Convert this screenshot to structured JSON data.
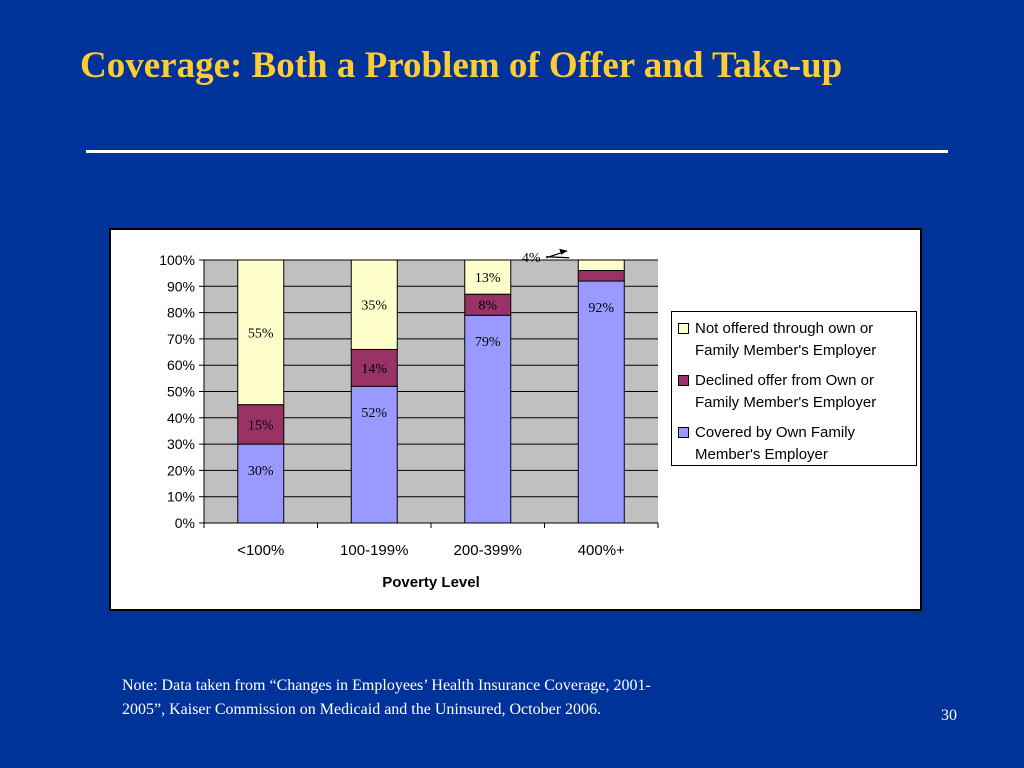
{
  "slide": {
    "title": "Coverage: Both a Problem of Offer and Take-up",
    "note": "Note: Data taken from “Changes in Employees’ Health Insurance Coverage, 2001-2005”, Kaiser Commission on Medicaid and the Uninsured, October 2006.",
    "page_number": "30"
  },
  "colors": {
    "background": "#003399",
    "title": "#FFCC33",
    "plot_area": "#C0C0C0"
  },
  "chart_data": {
    "type": "bar",
    "stacked": true,
    "title": "",
    "xlabel": "Poverty Level",
    "ylabel": "",
    "ylim": [
      0,
      100
    ],
    "yticks": [
      "0%",
      "10%",
      "20%",
      "30%",
      "40%",
      "50%",
      "60%",
      "70%",
      "80%",
      "90%",
      "100%"
    ],
    "grid": true,
    "legend_position": "right",
    "categories": [
      "<100%",
      "100-199%",
      "200-399%",
      "400%+"
    ],
    "series": [
      {
        "name": "Covered by Own Family Member's Employer",
        "values": [
          30,
          52,
          79,
          92
        ],
        "labels": [
          "30%",
          "52%",
          "79%",
          "92%"
        ],
        "color": "#9999FF"
      },
      {
        "name": "Declined offer from Own or Family Member's Employer",
        "values": [
          15,
          14,
          8,
          4
        ],
        "labels": [
          "15%",
          "14%",
          "8%",
          "4%"
        ],
        "color": "#993366"
      },
      {
        "name": "Not offered through own or Family Member's Employer",
        "values": [
          55,
          35,
          13,
          4
        ],
        "labels": [
          "55%",
          "35%",
          "13%",
          ""
        ],
        "color": "#FFFFCC"
      }
    ],
    "legend": {
      "entries": [
        {
          "lines": [
            "Not offered through own or",
            "Family Member's Employer"
          ],
          "color": "#FFFFCC"
        },
        {
          "lines": [
            "Declined offer from Own or",
            "Family Member's Employer"
          ],
          "color": "#993366"
        },
        {
          "lines": [
            "Covered by Own Family",
            "Member's Employer"
          ],
          "color": "#9999FF"
        }
      ]
    },
    "annotations": [
      {
        "text": "4%",
        "category": "400%+",
        "series": "Declined offer from Own or Family Member's Employer"
      }
    ]
  }
}
